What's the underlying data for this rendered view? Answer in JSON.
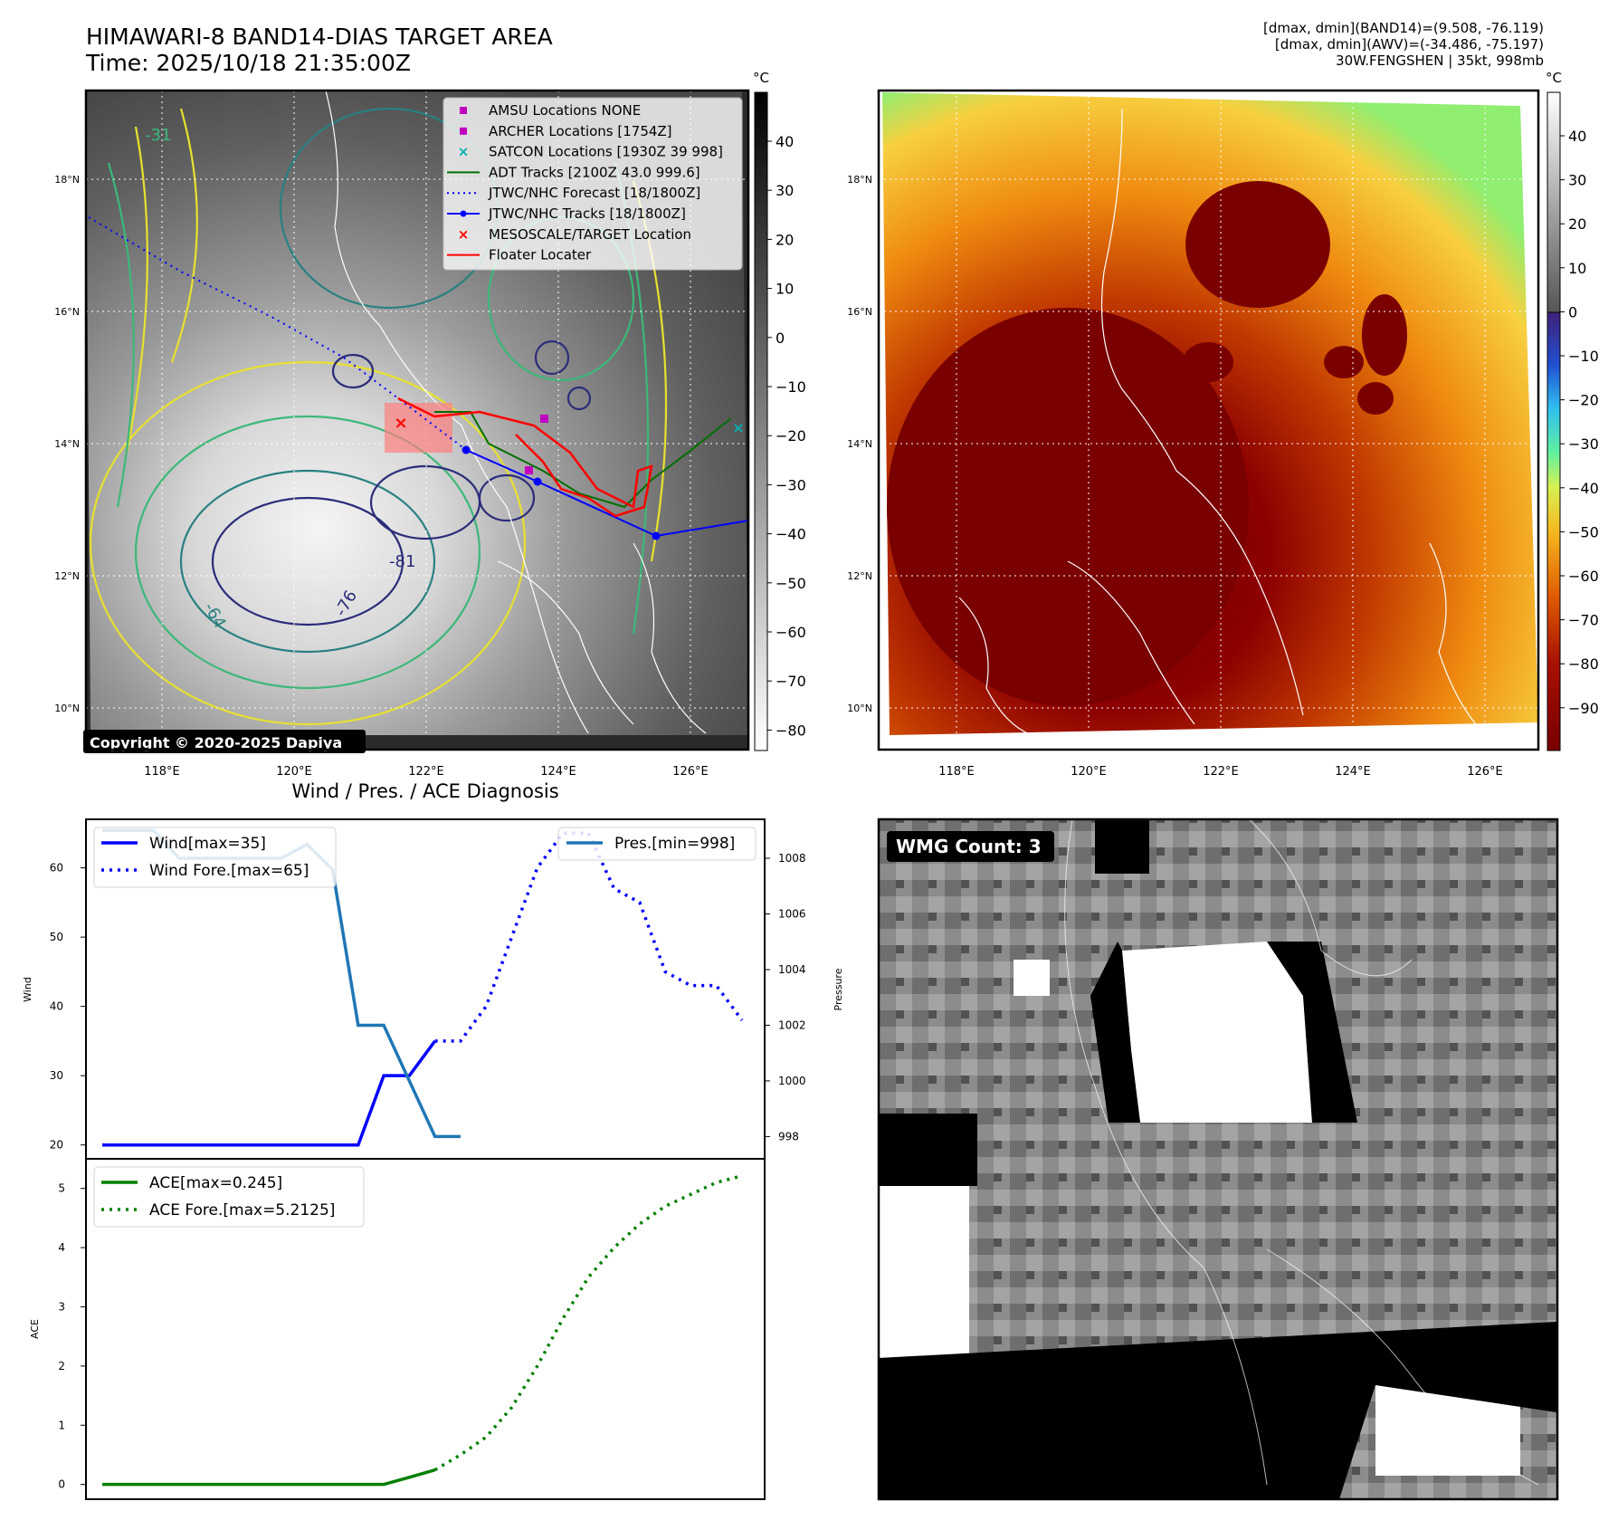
{
  "header": {
    "title_line1": "HIMAWARI-8 BAND14-DIAS TARGET AREA",
    "title_line2": "Time: 2025/10/18 21:35:00Z",
    "info_line1": "[dmax, dmin](BAND14)=(9.508, -76.119)",
    "info_line2": "[dmax, dmin](AWV)=(-34.486, -75.197)",
    "info_line3": "30W.FENGSHEN | 35kt, 998mb"
  },
  "map_axes": {
    "lon_ticks": [
      "118°E",
      "120°E",
      "122°E",
      "124°E",
      "126°E"
    ],
    "lat_ticks": [
      "18°N",
      "16°N",
      "14°N",
      "12°N",
      "10°N"
    ],
    "contour_labels": [
      "-81",
      "-76",
      "-64",
      "-31"
    ]
  },
  "legend": {
    "items": [
      {
        "label": "AMSU Locations NONE",
        "marker": "square",
        "color": "#c000c0"
      },
      {
        "label": "ARCHER Locations [1754Z]",
        "marker": "square",
        "color": "#c000c0"
      },
      {
        "label": "SATCON Locations [1930Z 39 998]",
        "marker": "x",
        "color": "#00b0b0"
      },
      {
        "label": "ADT Tracks [2100Z 43.0 999.6]",
        "marker": "line",
        "color": "#007000"
      },
      {
        "label": "JTWC/NHC Forecast [18/1800Z]",
        "marker": "dotted",
        "color": "#0000ff"
      },
      {
        "label": "JTWC/NHC Tracks [18/1800Z]",
        "marker": "line-dot",
        "color": "#0000ff"
      },
      {
        "label": "MESOSCALE/TARGET Location",
        "marker": "x",
        "color": "#ff0000"
      },
      {
        "label": "Floater Locater",
        "marker": "line",
        "color": "#ff0000"
      }
    ]
  },
  "copyright": "Copyright © 2020-2025 Dapiya",
  "colorbar_gray": {
    "unit": "°C",
    "ticks": [
      "40",
      "30",
      "20",
      "10",
      "0",
      "−10",
      "−20",
      "−30",
      "−40",
      "−50",
      "−60",
      "−70",
      "−80"
    ]
  },
  "colorbar_color": {
    "unit": "°C",
    "ticks": [
      "40",
      "30",
      "20",
      "10",
      "0",
      "−10",
      "−20",
      "−30",
      "−40",
      "−50",
      "−60",
      "−70",
      "−80",
      "−90"
    ]
  },
  "wmg": {
    "label": "WMG Count: 3"
  },
  "chart_data": [
    {
      "type": "line",
      "title": "Wind / Pres. / ACE Diagnosis",
      "ylabel": "Wind",
      "ylabel_right": "Pressure",
      "ylim": [
        18,
        67
      ],
      "ylim_right": [
        997.2,
        1009.4
      ],
      "x": [
        0,
        1,
        2,
        3,
        4,
        5,
        6,
        7,
        8,
        9,
        10,
        11,
        12,
        13,
        14,
        15,
        16,
        17,
        18,
        19,
        20,
        21,
        22,
        23,
        24,
        25
      ],
      "yticks_left": [
        {
          "v": 20,
          "label": "20"
        },
        {
          "v": 30,
          "label": "30"
        },
        {
          "v": 40,
          "label": "40"
        },
        {
          "v": 50,
          "label": "50"
        },
        {
          "v": 60,
          "label": "60"
        }
      ],
      "yticks_right": [
        {
          "v": 998,
          "label": "998"
        },
        {
          "v": 1000,
          "label": "1000"
        },
        {
          "v": 1002,
          "label": "1002"
        },
        {
          "v": 1004,
          "label": "1004"
        },
        {
          "v": 1006,
          "label": "1006"
        },
        {
          "v": 1008,
          "label": "1008"
        }
      ],
      "series": [
        {
          "name": "Wind[max=35]",
          "axis": "left",
          "style": "solid",
          "color": "#0000ff",
          "x": [
            0,
            1,
            2,
            3,
            4,
            5,
            6,
            7,
            8,
            9,
            10,
            11,
            12,
            13
          ],
          "values": [
            20,
            20,
            20,
            20,
            20,
            20,
            20,
            20,
            20,
            20,
            20,
            30,
            30,
            35
          ]
        },
        {
          "name": "Wind Fore.[max=65]",
          "axis": "left",
          "style": "dotted",
          "color": "#0000ff",
          "x": [
            13,
            14,
            15,
            16,
            17,
            18,
            19,
            20,
            21,
            22,
            23,
            24,
            25
          ],
          "values": [
            35,
            35,
            40,
            50,
            60,
            65,
            65,
            57,
            55,
            45,
            43,
            43,
            38
          ]
        },
        {
          "name": "Pres.[min=998]",
          "axis": "right",
          "style": "solid",
          "color": "#1f77b4",
          "x": [
            0,
            1,
            2,
            3,
            4,
            5,
            6,
            7,
            8,
            9,
            10,
            11,
            12,
            13,
            14
          ],
          "values": [
            1009,
            1009,
            1009,
            1008,
            1008,
            1008,
            1008,
            1008,
            1008.5,
            1007.6,
            1002,
            1002,
            1000,
            998,
            998
          ]
        }
      ]
    },
    {
      "type": "line",
      "ylabel": "ACE",
      "ylim": [
        -0.25,
        5.5
      ],
      "yticks_left": [
        {
          "v": 0,
          "label": "0"
        },
        {
          "v": 1,
          "label": "1"
        },
        {
          "v": 2,
          "label": "2"
        },
        {
          "v": 3,
          "label": "3"
        },
        {
          "v": 4,
          "label": "4"
        },
        {
          "v": 5,
          "label": "5"
        }
      ],
      "series": [
        {
          "name": "ACE[max=0.245]",
          "style": "solid",
          "color": "#008000",
          "x": [
            0,
            1,
            2,
            3,
            4,
            5,
            6,
            7,
            8,
            9,
            10,
            11,
            12,
            13
          ],
          "values": [
            0,
            0,
            0,
            0,
            0,
            0,
            0,
            0,
            0,
            0,
            0,
            0,
            0.12,
            0.245
          ]
        },
        {
          "name": "ACE Fore.[max=5.2125]",
          "style": "dotted",
          "color": "#008000",
          "x": [
            13,
            14,
            15,
            16,
            17,
            18,
            19,
            20,
            21,
            22,
            23,
            24,
            25
          ],
          "values": [
            0.245,
            0.5,
            0.8,
            1.3,
            2.0,
            2.8,
            3.5,
            4.0,
            4.4,
            4.7,
            4.9,
            5.1,
            5.2125
          ]
        }
      ]
    }
  ]
}
